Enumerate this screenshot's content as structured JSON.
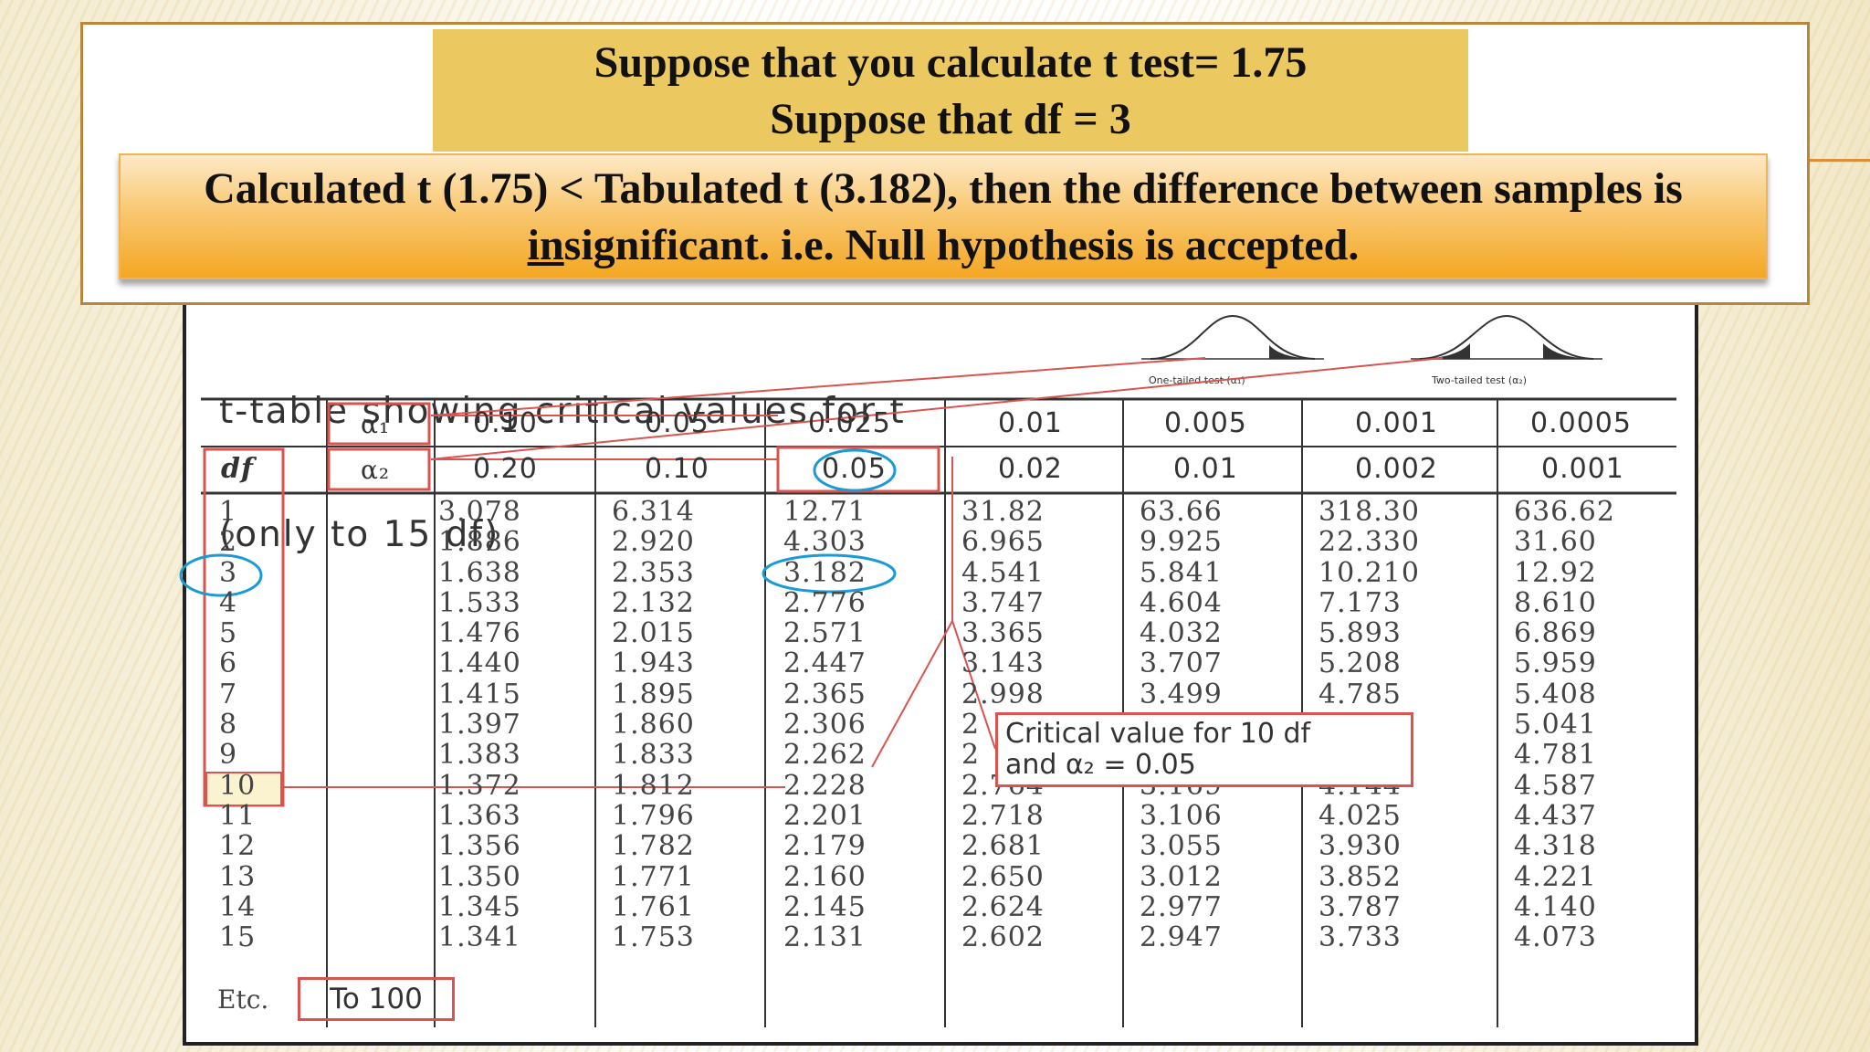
{
  "question": {
    "line1": "Suppose that you calculate t test= 1.75",
    "line2": "Suppose that df = 3"
  },
  "answer": {
    "line1": "Calculated t (1.75) < Tabulated t (3.182), then the difference between samples is",
    "line2_underlined": "in",
    "line2_rest": "significant. i.e. Null hypothesis is accepted."
  },
  "t_table": {
    "title_line1": "t-table showing critical values for t",
    "title_line2": "(only to 15 df)",
    "one_tailed_caption": "One-tailed test (α₁)",
    "two_tailed_caption": "Two-tailed test (α₂)",
    "alpha1_label": "α₁",
    "alpha2_label": "α₂",
    "df_label": "df",
    "alpha1_values": [
      "0.10",
      "0.05",
      "0.025",
      "0.01",
      "0.005",
      "0.001",
      "0.0005"
    ],
    "alpha2_values": [
      "0.20",
      "0.10",
      "0.05",
      "0.02",
      "0.01",
      "0.002",
      "0.001"
    ],
    "df_values": [
      "1",
      "2",
      "3",
      "4",
      "5",
      "6",
      "7",
      "8",
      "9",
      "10",
      "11",
      "12",
      "13",
      "14",
      "15"
    ],
    "columns": [
      [
        "3.078",
        "1.886",
        "1.638",
        "1.533",
        "1.476",
        "1.440",
        "1.415",
        "1.397",
        "1.383",
        "1.372",
        "1.363",
        "1.356",
        "1.350",
        "1.345",
        "1.341"
      ],
      [
        "6.314",
        "2.920",
        "2.353",
        "2.132",
        "2.015",
        "1.943",
        "1.895",
        "1.860",
        "1.833",
        "1.812",
        "1.796",
        "1.782",
        "1.771",
        "1.761",
        "1.753"
      ],
      [
        "12.71",
        "4.303",
        "3.182",
        "2.776",
        "2.571",
        "2.447",
        "2.365",
        "2.306",
        "2.262",
        "2.228",
        "2.201",
        "2.179",
        "2.160",
        "2.145",
        "2.131"
      ],
      [
        "31.82",
        "6.965",
        "4.541",
        "3.747",
        "3.365",
        "3.143",
        "2.998",
        "2",
        "2",
        "2.764",
        "2.718",
        "2.681",
        "2.650",
        "2.624",
        "2.602"
      ],
      [
        "63.66",
        "9.925",
        "5.841",
        "4.604",
        "4.032",
        "3.707",
        "3.499",
        "",
        "",
        "3.169",
        "3.106",
        "3.055",
        "3.012",
        "2.977",
        "2.947"
      ],
      [
        "318.30",
        "22.330",
        "10.210",
        "7.173",
        "5.893",
        "5.208",
        "4.785",
        "",
        "",
        "4.144",
        "4.025",
        "3.930",
        "3.852",
        "3.787",
        "3.733"
      ],
      [
        "636.62",
        "31.60",
        "12.92",
        "8.610",
        "6.869",
        "5.959",
        "5.408",
        "5.041",
        "4.781",
        "4.587",
        "4.437",
        "4.318",
        "4.221",
        "4.140",
        "4.073"
      ]
    ],
    "etc_label": "Etc.",
    "to_100_label": "To 100",
    "critical_note_line1": "Critical value for 10 df",
    "critical_note_line2": "and α₂ = 0.05"
  },
  "colors": {
    "highlight_red": "#d9534f",
    "circle_blue": "#1a9ad6",
    "question_bg": "#ecc960",
    "answer_gradient_end": "#f4a723"
  }
}
